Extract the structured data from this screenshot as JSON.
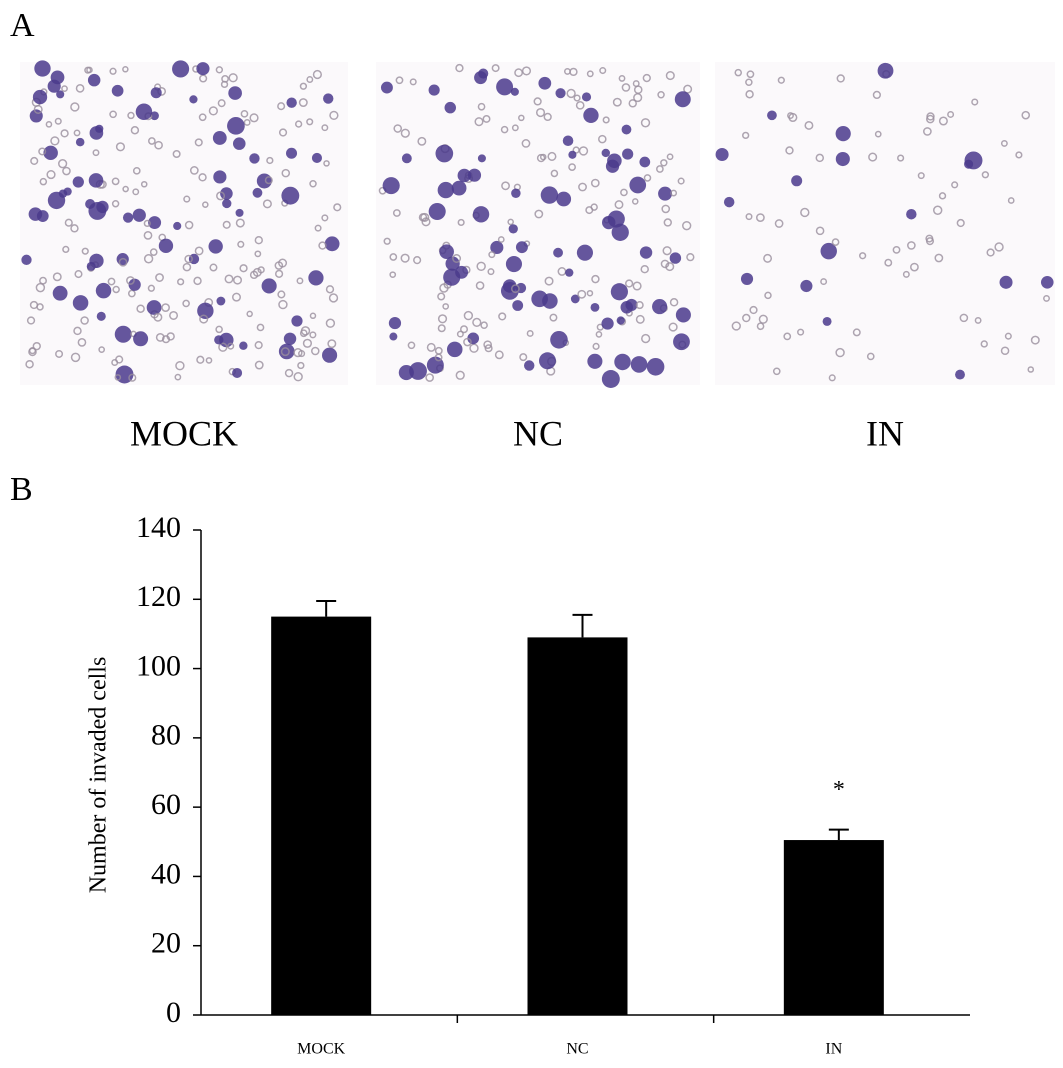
{
  "panel_labels": [
    "A",
    "B"
  ],
  "images": [
    {
      "caption": "MOCK"
    },
    {
      "caption": "NC"
    },
    {
      "caption": "IN"
    }
  ],
  "chart_data": {
    "type": "bar",
    "ylabel": "Number of invaded cells",
    "categories": [
      "MOCK",
      "NC",
      "IN"
    ],
    "values": [
      115,
      109,
      50.5
    ],
    "errors": [
      4.5,
      6.5,
      3
    ],
    "color": "#000000",
    "ylim": [
      0,
      140
    ],
    "yticks": [
      0,
      20,
      40,
      60,
      80,
      100,
      120,
      140
    ],
    "grid": false,
    "annotations": [
      {
        "text": "*",
        "category": 2
      }
    ]
  }
}
